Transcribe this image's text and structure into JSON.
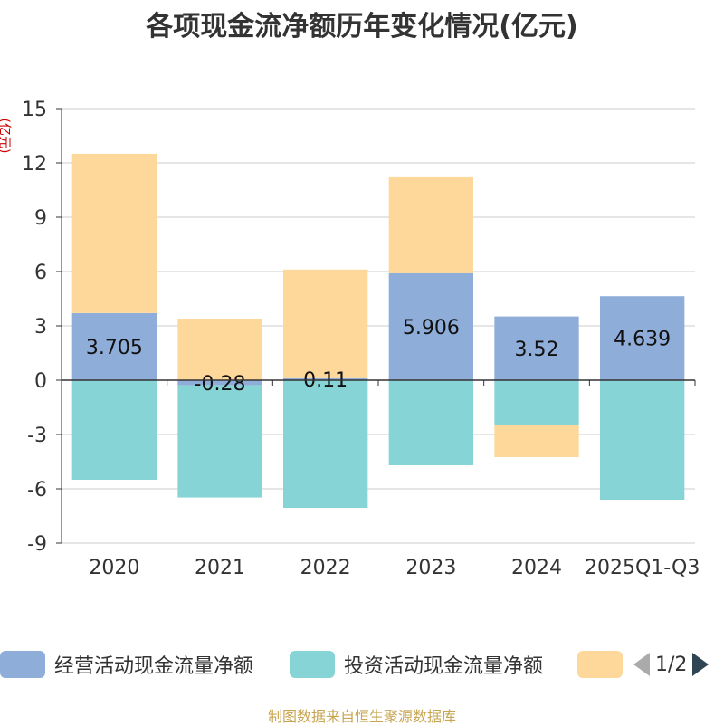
{
  "chart_data": {
    "type": "bar",
    "stacked": true,
    "title": "各项现金流净额历年变化情况(亿元)",
    "ylabel": "(亿元)",
    "xlabel": "",
    "ylim": [
      -9,
      15
    ],
    "yticks": [
      15,
      12,
      9,
      6,
      3,
      0,
      -3,
      -6,
      -9
    ],
    "categories": [
      "2020",
      "2021",
      "2022",
      "2023",
      "2024",
      "2025Q1-Q3"
    ],
    "series": [
      {
        "name": "经营活动现金流量净额",
        "color": "#8eadd9",
        "values": [
          3.705,
          -0.28,
          0.11,
          5.906,
          3.52,
          4.639
        ],
        "labels": [
          "3.705",
          "-0.28",
          "0.11",
          "5.906",
          "3.52",
          "4.639"
        ]
      },
      {
        "name": "投资活动现金流量净额",
        "color": "#86d4d6",
        "values": [
          -5.5,
          -6.2,
          -7.05,
          -4.7,
          -2.45,
          -6.6
        ]
      },
      {
        "name": "",
        "color": "#fdd89a",
        "values": [
          8.8,
          3.4,
          6.0,
          5.35,
          -1.8,
          0
        ]
      }
    ],
    "legend_position": "bottom",
    "grid": true
  },
  "legend": {
    "items": [
      {
        "label": "经营活动现金流量净额",
        "color": "#8eadd9"
      },
      {
        "label": "投资活动现金流量净额",
        "color": "#86d4d6"
      },
      {
        "label": "",
        "color": "#fdd89a"
      }
    ],
    "page": "1/2"
  },
  "source": "制图数据来自恒生聚源数据库"
}
